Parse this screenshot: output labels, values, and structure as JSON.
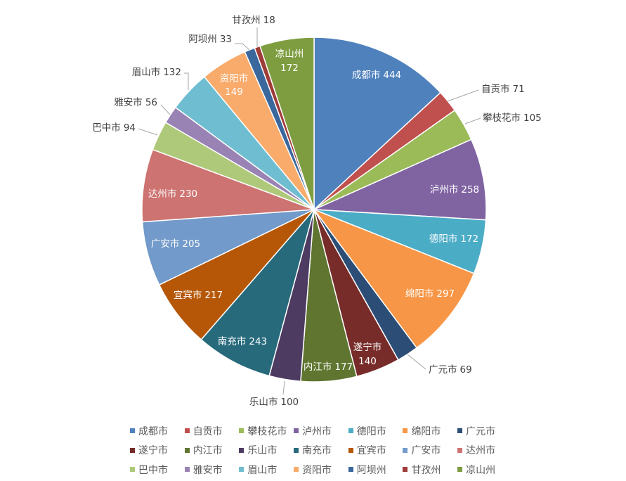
{
  "chart_data": {
    "type": "pie",
    "categories": [
      "成都市",
      "自贡市",
      "攀枝花市",
      "泸州市",
      "德阳市",
      "绵阳市",
      "广元市",
      "遂宁市",
      "内江市",
      "乐山市",
      "南充市",
      "宜宾市",
      "广安市",
      "达州市",
      "巴中市",
      "雅安市",
      "眉山市",
      "资阳市",
      "阿坝州",
      "甘孜州",
      "凉山州"
    ],
    "values": [
      444,
      71,
      105,
      258,
      172,
      297,
      69,
      140,
      177,
      100,
      243,
      217,
      205,
      230,
      94,
      56,
      132,
      149,
      33,
      18,
      172
    ],
    "colors": [
      "#4F81BD",
      "#C0504D",
      "#9BBB59",
      "#8064A2",
      "#4BACC6",
      "#F79646",
      "#2C4D75",
      "#772C2A",
      "#5F7530",
      "#4D3B62",
      "#276A7C",
      "#B65708",
      "#729ACA",
      "#CD7371",
      "#AFC97A",
      "#9983B5",
      "#6FBDD1",
      "#F9AB6B",
      "#3A679C",
      "#9F3B38",
      "#7E9D40"
    ],
    "legend": "bottom"
  }
}
